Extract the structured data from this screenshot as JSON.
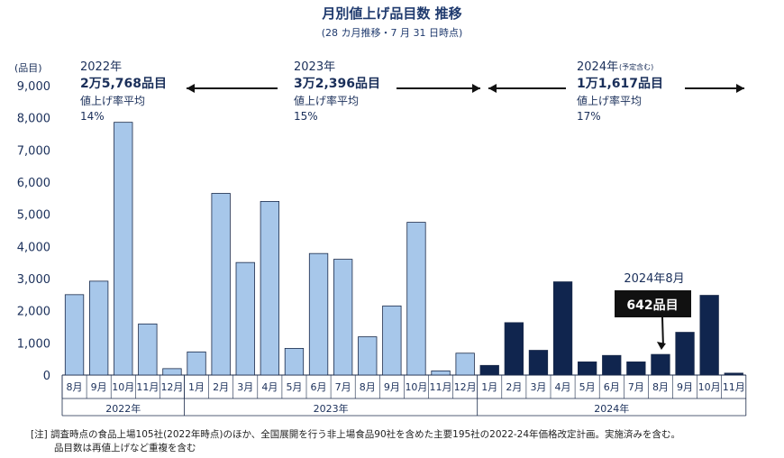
{
  "title": "月別値上げ品目数 推移",
  "subtitle": "(28 カ月推移・7 月 31 日時点)",
  "y_unit_label": "(品目)",
  "colors": {
    "y2022": "#a7c7ea",
    "y2023": "#a7c7ea",
    "y2024": "#10254e",
    "stroke": "#1a2a4a",
    "text": "#1a2f5a"
  },
  "annotations": {
    "y2022": {
      "year": "2022年",
      "total": "2万5,768品目",
      "rate_label": "値上げ率平均",
      "rate": "14%"
    },
    "y2023": {
      "year": "2023年",
      "total": "3万2,396品目",
      "rate_label": "値上げ率平均",
      "rate": "15%"
    },
    "y2024": {
      "year": "2024年",
      "year_note": "(予定含む)",
      "total": "1万1,617品目",
      "rate_label": "値上げ率平均",
      "rate": "17%"
    },
    "callout": {
      "label": "2024年8月",
      "value": "642品目"
    }
  },
  "notes": [
    "[注] 調査時点の食品上場105社(2022年時点)のほか、全国展開を行う非上場食品90社を含めた主要195社の2022-24年価格改定計画。実施済みを含む。",
    "品目数は再値上げなど重複を含む"
  ],
  "chart_data": {
    "type": "bar",
    "title": "月別値上げ品目数 推移",
    "ylabel": "(品目)",
    "ylim": [
      0,
      9000
    ],
    "yticks": [
      0,
      1000,
      2000,
      3000,
      4000,
      5000,
      6000,
      7000,
      8000,
      9000
    ],
    "ytick_labels": [
      "0",
      "1,000",
      "2,000",
      "3,000",
      "4,000",
      "5,000",
      "6,000",
      "7,000",
      "8,000",
      "9,000"
    ],
    "groups": [
      {
        "label": "2022年",
        "categories": [
          "8月",
          "9月",
          "10月",
          "11月",
          "12月"
        ],
        "values": [
          2500,
          2920,
          7860,
          1590,
          200
        ]
      },
      {
        "label": "2023年",
        "categories": [
          "1月",
          "2月",
          "3月",
          "4月",
          "5月",
          "6月",
          "7月",
          "8月",
          "9月",
          "10月",
          "11月",
          "12月"
        ],
        "values": [
          720,
          5650,
          3500,
          5400,
          830,
          3780,
          3600,
          1190,
          2150,
          4750,
          130,
          680
        ]
      },
      {
        "label": "2024年",
        "categories": [
          "1月",
          "2月",
          "3月",
          "4月",
          "5月",
          "6月",
          "7月",
          "8月",
          "9月",
          "10月",
          "11月"
        ],
        "values": [
          300,
          1630,
          770,
          2900,
          410,
          610,
          410,
          642,
          1330,
          2480,
          60
        ]
      }
    ],
    "grid": false,
    "legend": "none"
  }
}
